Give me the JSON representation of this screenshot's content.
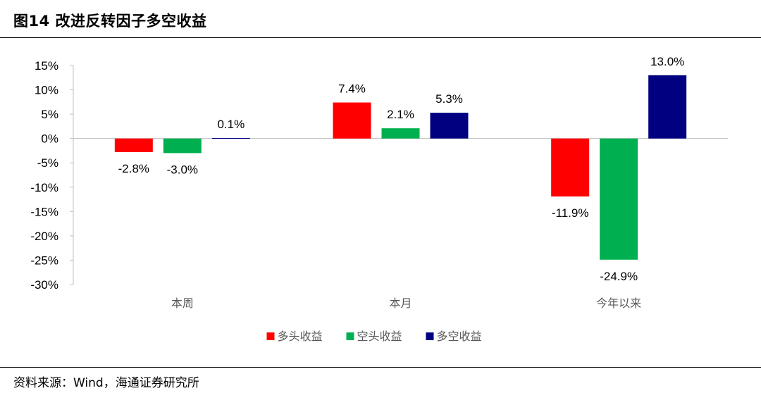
{
  "header": {
    "title": "图14 改进反转因子多空收益"
  },
  "footer": {
    "source": "资料来源：Wind，海通证券研究所"
  },
  "chart_data": {
    "type": "bar",
    "categories": [
      "本周",
      "本月",
      "今年以来"
    ],
    "series": [
      {
        "name": "多头收益",
        "color": "#FF0000",
        "values": [
          -2.8,
          7.4,
          -11.9
        ],
        "labels": [
          "-2.8%",
          "7.4%",
          "-11.9%"
        ]
      },
      {
        "name": "空头收益",
        "color": "#00B050",
        "values": [
          -3.0,
          2.1,
          -24.9
        ],
        "labels": [
          "-3.0%",
          "2.1%",
          "-24.9%"
        ]
      },
      {
        "name": "多空收益",
        "color": "#000080",
        "values": [
          0.1,
          5.3,
          13.0
        ],
        "labels": [
          "0.1%",
          "5.3%",
          "13.0%"
        ]
      }
    ],
    "yticks": [
      "15%",
      "10%",
      "5%",
      "0%",
      "-5%",
      "-10%",
      "-15%",
      "-20%",
      "-25%",
      "-30%"
    ],
    "ylim": [
      -30,
      15
    ],
    "grid": false,
    "legend_position": "bottom"
  }
}
